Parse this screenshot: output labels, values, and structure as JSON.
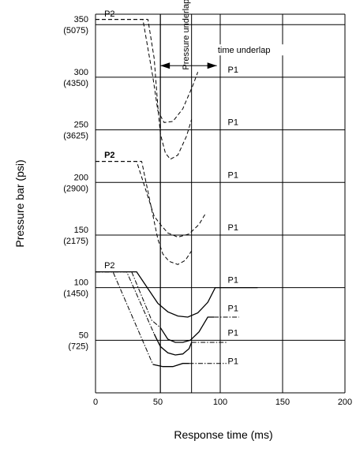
{
  "chart_data": {
    "type": "line",
    "title": "",
    "xlabel": "Response time (ms)",
    "ylabel": "Pressure bar (psi)",
    "xlim": [
      0,
      200
    ],
    "ylim": [
      0,
      360
    ],
    "x_ticks": [
      "0",
      "50",
      "100",
      "150",
      "200"
    ],
    "y_ticks": [
      {
        "value": 50,
        "bar": "50",
        "psi": "(725)"
      },
      {
        "value": 100,
        "bar": "100",
        "psi": "(1450)"
      },
      {
        "value": 150,
        "bar": "150",
        "psi": "(2175)"
      },
      {
        "value": 200,
        "bar": "200",
        "psi": "(2900)"
      },
      {
        "value": 250,
        "bar": "250",
        "psi": "(3625)"
      },
      {
        "value": 300,
        "bar": "300",
        "psi": "(4350)"
      },
      {
        "value": 350,
        "bar": "350",
        "psi": "(5075)"
      }
    ],
    "grid": {
      "horizontal": [
        50,
        100,
        150,
        200,
        250,
        300,
        350
      ],
      "vertical": [
        52,
        100,
        150,
        200
      ]
    },
    "time_markers": [
      52,
      77
    ],
    "annotations": {
      "pressure_underlap": "Pressure underlap",
      "time_underlap": "time underlap"
    },
    "series": [
      {
        "group": "350",
        "style": "dashed",
        "points": [
          [
            0,
            355
          ],
          [
            38,
            355
          ],
          [
            46,
            300
          ],
          [
            50,
            268
          ],
          [
            55,
            257
          ],
          [
            62,
            258
          ],
          [
            70,
            270
          ],
          [
            78,
            292
          ],
          [
            82,
            305
          ]
        ]
      },
      {
        "group": "350",
        "style": "dashed",
        "points": [
          [
            0,
            355
          ],
          [
            42,
            355
          ],
          [
            47,
            318
          ],
          [
            50,
            272
          ],
          [
            52,
            246
          ],
          [
            56,
            228
          ],
          [
            60,
            222
          ],
          [
            66,
            226
          ],
          [
            73,
            244
          ],
          [
            77,
            260
          ]
        ]
      },
      {
        "group": "220",
        "style": "dashed",
        "points": [
          [
            0,
            220
          ],
          [
            33,
            220
          ],
          [
            47,
            168
          ],
          [
            52,
            160
          ],
          [
            58,
            152
          ],
          [
            66,
            148
          ],
          [
            75,
            151
          ],
          [
            83,
            160
          ],
          [
            88,
            170
          ]
        ]
      },
      {
        "group": "220",
        "style": "dashed",
        "points": [
          [
            0,
            220
          ],
          [
            37,
            220
          ],
          [
            50,
            146
          ],
          [
            54,
            132
          ],
          [
            59,
            125
          ],
          [
            66,
            122
          ],
          [
            72,
            126
          ],
          [
            77,
            135
          ]
        ]
      },
      {
        "group": "115",
        "style": "solid",
        "points": [
          [
            0,
            115
          ],
          [
            33,
            115
          ],
          [
            50,
            85
          ],
          [
            58,
            77
          ],
          [
            66,
            73
          ],
          [
            74,
            72
          ],
          [
            82,
            76
          ],
          [
            90,
            86
          ],
          [
            96,
            100
          ],
          [
            130,
            100
          ]
        ]
      },
      {
        "group": "115",
        "style": "dash-dot",
        "points": [
          [
            0,
            115
          ],
          [
            29,
            115
          ],
          [
            45,
            69
          ],
          [
            52,
            62
          ]
        ]
      },
      {
        "group": "115",
        "style": "solid",
        "points": [
          [
            52,
            62
          ],
          [
            58,
            51
          ],
          [
            64,
            48
          ],
          [
            70,
            48
          ],
          [
            76,
            50
          ],
          [
            83,
            58
          ],
          [
            90,
            72
          ],
          [
            95,
            72
          ]
        ]
      },
      {
        "group": "115",
        "style": "dash-dot",
        "points": [
          [
            95,
            72
          ],
          [
            115,
            72
          ]
        ]
      },
      {
        "group": "115",
        "style": "dash-dot",
        "points": [
          [
            0,
            115
          ],
          [
            25,
            115
          ],
          [
            47,
            56
          ]
        ]
      },
      {
        "group": "115",
        "style": "solid",
        "points": [
          [
            47,
            56
          ],
          [
            52,
            44
          ],
          [
            58,
            38
          ],
          [
            64,
            36
          ],
          [
            70,
            37
          ],
          [
            75,
            42
          ],
          [
            77,
            48
          ]
        ]
      },
      {
        "group": "115",
        "style": "dash-dot",
        "points": [
          [
            77,
            48
          ],
          [
            105,
            48
          ]
        ]
      },
      {
        "group": "115",
        "style": "dash-dot",
        "points": [
          [
            0,
            115
          ],
          [
            14,
            115
          ],
          [
            46,
            27
          ]
        ]
      },
      {
        "group": "115",
        "style": "solid",
        "points": [
          [
            46,
            27
          ],
          [
            54,
            25
          ],
          [
            62,
            25
          ],
          [
            70,
            28
          ],
          [
            75,
            28
          ]
        ]
      },
      {
        "group": "115",
        "style": "dash-dot",
        "points": [
          [
            75,
            28
          ],
          [
            105,
            28
          ]
        ]
      }
    ],
    "labels": [
      {
        "text": "P2",
        "x": 7,
        "y": 356,
        "bold": false
      },
      {
        "text": "P1",
        "x": 106,
        "y": 303,
        "bold": false
      },
      {
        "text": "P1",
        "x": 106,
        "y": 253,
        "bold": false
      },
      {
        "text": "P2",
        "x": 7,
        "y": 222,
        "bold": true
      },
      {
        "text": "P1",
        "x": 106,
        "y": 203,
        "bold": false
      },
      {
        "text": "P1",
        "x": 106,
        "y": 153,
        "bold": false
      },
      {
        "text": "P2",
        "x": 7,
        "y": 117,
        "bold": false
      },
      {
        "text": "P1",
        "x": 106,
        "y": 103,
        "bold": false
      },
      {
        "text": "P1",
        "x": 106,
        "y": 76,
        "bold": false
      },
      {
        "text": "P1",
        "x": 106,
        "y": 53,
        "bold": false
      },
      {
        "text": "P1",
        "x": 106,
        "y": 26,
        "bold": false
      }
    ]
  }
}
